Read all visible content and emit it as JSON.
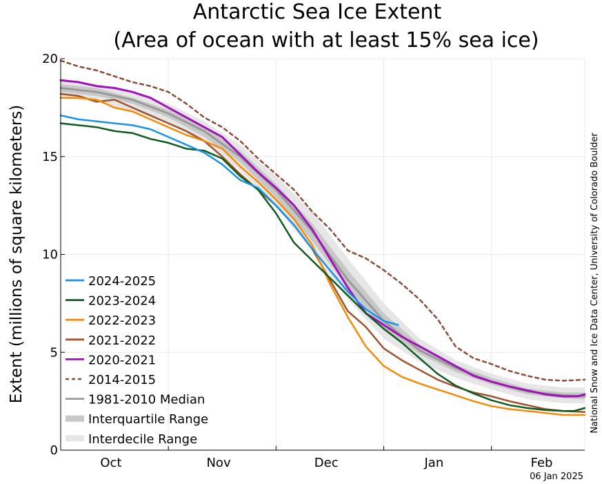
{
  "chart_data": {
    "type": "line",
    "title": "Antarctic Sea Ice Extent",
    "subtitle": "(Area of ocean with at least 15% sea ice)",
    "ylabel": "Extent (millions of square kilometers)",
    "xlabel": "",
    "ylim": [
      0,
      20
    ],
    "yticks": [
      0,
      5,
      10,
      15,
      20
    ],
    "xlim": [
      0,
      146
    ],
    "xticks": [
      {
        "label": "Oct",
        "day": 14
      },
      {
        "label": "Nov",
        "day": 44
      },
      {
        "label": "Dec",
        "day": 74
      },
      {
        "label": "Jan",
        "day": 104
      },
      {
        "label": "Feb",
        "day": 134
      }
    ],
    "x_gridlines": [
      0,
      30,
      60,
      90,
      120,
      146
    ],
    "x_unit": "days since Sep 17",
    "grid": true,
    "legend_position": "bottom-left",
    "credit": "National Snow and Ice Data Center, University of Colorado Boulder",
    "date_stamp": "06 Jan 2025",
    "bands": [
      {
        "name": "Interdecile Range",
        "color": "#e6e6e6",
        "x": [
          0,
          10,
          20,
          30,
          40,
          50,
          60,
          70,
          80,
          90,
          100,
          110,
          120,
          130,
          140,
          146
        ],
        "lower": [
          18.0,
          17.8,
          17.3,
          16.7,
          15.7,
          14.3,
          12.4,
          10.2,
          7.7,
          5.7,
          4.5,
          3.7,
          3.1,
          2.6,
          2.4,
          2.4
        ],
        "upper": [
          18.9,
          18.7,
          18.3,
          17.7,
          16.8,
          15.6,
          14.0,
          12.2,
          9.8,
          7.5,
          5.7,
          4.6,
          3.9,
          3.4,
          3.2,
          3.2
        ]
      },
      {
        "name": "Interquartile Range",
        "color": "#c8c8c8",
        "x": [
          0,
          10,
          20,
          30,
          40,
          50,
          60,
          70,
          80,
          90,
          100,
          110,
          120,
          130,
          140,
          146
        ],
        "lower": [
          18.3,
          18.1,
          17.7,
          17.0,
          16.0,
          14.7,
          12.9,
          10.7,
          8.3,
          6.2,
          4.9,
          4.0,
          3.35,
          2.85,
          2.65,
          2.6
        ],
        "upper": [
          18.7,
          18.5,
          18.0,
          17.4,
          16.5,
          15.3,
          13.6,
          11.6,
          9.2,
          7.0,
          5.4,
          4.35,
          3.7,
          3.15,
          2.95,
          2.95
        ]
      }
    ],
    "series": [
      {
        "name": "1981-2010 Median",
        "color": "#999999",
        "width": 3,
        "dash": "",
        "x": [
          0,
          10,
          20,
          30,
          40,
          50,
          60,
          70,
          80,
          90,
          100,
          110,
          120,
          130,
          140,
          146
        ],
        "values": [
          18.5,
          18.3,
          17.9,
          17.2,
          16.3,
          15.0,
          13.3,
          11.2,
          8.7,
          6.6,
          5.1,
          4.2,
          3.5,
          3.0,
          2.8,
          2.75
        ]
      },
      {
        "name": "2014-2015",
        "color": "#8b4a3a",
        "width": 2.5,
        "dash": "5,5",
        "x": [
          0,
          5,
          10,
          15,
          20,
          25,
          30,
          35,
          40,
          45,
          50,
          55,
          60,
          65,
          70,
          75,
          80,
          85,
          90,
          95,
          100,
          105,
          110,
          115,
          120,
          125,
          130,
          135,
          140,
          146
        ],
        "values": [
          19.9,
          19.6,
          19.4,
          19.1,
          18.8,
          18.6,
          18.3,
          17.7,
          17.0,
          16.5,
          15.8,
          14.9,
          14.1,
          13.3,
          12.2,
          11.3,
          10.2,
          9.8,
          9.2,
          8.5,
          7.7,
          6.7,
          5.3,
          4.7,
          4.4,
          4.05,
          3.8,
          3.6,
          3.55,
          3.6
        ]
      },
      {
        "name": "2020-2021",
        "color": "#a012b8",
        "width": 3,
        "dash": "",
        "x": [
          0,
          5,
          10,
          15,
          20,
          25,
          30,
          35,
          40,
          45,
          50,
          55,
          60,
          65,
          70,
          75,
          80,
          85,
          90,
          95,
          100,
          105,
          110,
          115,
          120,
          125,
          130,
          135,
          140,
          144,
          146
        ],
        "values": [
          18.9,
          18.8,
          18.6,
          18.5,
          18.3,
          18.0,
          17.5,
          17.0,
          16.5,
          16.0,
          15.1,
          14.2,
          13.4,
          12.5,
          11.3,
          9.8,
          8.3,
          7.0,
          6.4,
          5.8,
          5.3,
          4.8,
          4.3,
          3.8,
          3.5,
          3.25,
          3.05,
          2.85,
          2.75,
          2.75,
          2.85
        ]
      },
      {
        "name": "2021-2022",
        "color": "#a0522d",
        "width": 2.5,
        "dash": "",
        "x": [
          0,
          5,
          10,
          15,
          20,
          25,
          30,
          35,
          40,
          45,
          50,
          55,
          60,
          65,
          70,
          75,
          80,
          85,
          90,
          95,
          100,
          105,
          110,
          115,
          120,
          125,
          130,
          135,
          140,
          146
        ],
        "values": [
          18.2,
          18.1,
          17.8,
          17.9,
          17.5,
          17.1,
          16.7,
          16.3,
          15.8,
          15.0,
          14.1,
          13.3,
          12.5,
          11.5,
          10.3,
          8.7,
          7.1,
          6.3,
          5.2,
          4.6,
          4.1,
          3.6,
          3.25,
          2.95,
          2.75,
          2.5,
          2.3,
          2.1,
          2.0,
          1.95
        ]
      },
      {
        "name": "2022-2023",
        "color": "#f58a07",
        "width": 2.5,
        "dash": "",
        "x": [
          0,
          5,
          10,
          15,
          20,
          25,
          30,
          35,
          40,
          45,
          50,
          55,
          60,
          65,
          70,
          75,
          80,
          85,
          90,
          95,
          100,
          105,
          110,
          115,
          120,
          125,
          130,
          135,
          140,
          146
        ],
        "values": [
          18.0,
          18.0,
          17.9,
          17.5,
          17.3,
          16.9,
          16.5,
          16.1,
          15.8,
          15.4,
          14.5,
          13.7,
          12.8,
          11.8,
          10.5,
          8.5,
          6.8,
          5.3,
          4.3,
          3.75,
          3.4,
          3.1,
          2.8,
          2.5,
          2.25,
          2.1,
          2.0,
          1.9,
          1.8,
          1.8
        ]
      },
      {
        "name": "2023-2024",
        "color": "#0c5a1e",
        "width": 2.5,
        "dash": "",
        "x": [
          0,
          5,
          10,
          15,
          20,
          25,
          30,
          35,
          40,
          45,
          50,
          55,
          60,
          65,
          70,
          75,
          80,
          85,
          90,
          95,
          100,
          105,
          110,
          115,
          120,
          125,
          130,
          135,
          140,
          143,
          146
        ],
        "values": [
          16.7,
          16.6,
          16.5,
          16.3,
          16.2,
          15.9,
          15.7,
          15.4,
          15.3,
          14.9,
          14.0,
          13.3,
          12.1,
          10.6,
          9.7,
          8.8,
          7.9,
          7.0,
          6.2,
          5.5,
          4.7,
          3.9,
          3.3,
          2.9,
          2.55,
          2.3,
          2.15,
          2.05,
          2.0,
          2.0,
          2.15
        ]
      },
      {
        "name": "2024-2025",
        "color": "#1793e6",
        "width": 2.5,
        "dash": "",
        "x": [
          0,
          5,
          10,
          15,
          20,
          25,
          30,
          35,
          40,
          45,
          50,
          55,
          60,
          65,
          70,
          75,
          80,
          85,
          90,
          94
        ],
        "values": [
          17.1,
          16.9,
          16.8,
          16.7,
          16.6,
          16.4,
          16.0,
          15.6,
          15.2,
          14.6,
          13.8,
          13.4,
          12.5,
          11.5,
          10.3,
          9.2,
          8.1,
          7.2,
          6.6,
          6.4
        ]
      }
    ],
    "legend": [
      {
        "label": "2024-2025",
        "color": "#1793e6",
        "style": "line"
      },
      {
        "label": "2023-2024",
        "color": "#0c5a1e",
        "style": "line"
      },
      {
        "label": "2022-2023",
        "color": "#f58a07",
        "style": "line"
      },
      {
        "label": "2021-2022",
        "color": "#a0522d",
        "style": "line"
      },
      {
        "label": "2020-2021",
        "color": "#a012b8",
        "style": "line"
      },
      {
        "label": "2014-2015",
        "color": "#8b4a3a",
        "style": "dashed"
      },
      {
        "label": "1981-2010 Median",
        "color": "#999999",
        "style": "line"
      },
      {
        "label": "Interquartile Range",
        "color": "#c8c8c8",
        "style": "band"
      },
      {
        "label": "Interdecile Range",
        "color": "#e6e6e6",
        "style": "band"
      }
    ]
  }
}
